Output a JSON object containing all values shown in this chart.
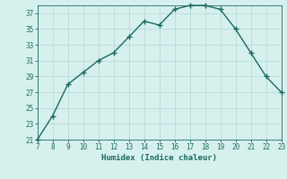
{
  "x": [
    7,
    8,
    9,
    10,
    11,
    12,
    13,
    14,
    15,
    16,
    17,
    18,
    19,
    20,
    21,
    22,
    23
  ],
  "y": [
    21,
    24,
    28,
    29.5,
    31,
    32,
    34,
    36,
    35.5,
    37.5,
    38,
    38,
    37.5,
    35,
    32,
    29,
    27
  ],
  "xlabel": "Humidex (Indice chaleur)",
  "line_color": "#1a6b5a",
  "marker": "+",
  "marker_size": 4,
  "bg_color": "#d6f0ee",
  "grid_color": "#b8dbd8",
  "tick_color": "#1a6b5a",
  "label_color": "#1a6b5a",
  "xlim": [
    7,
    23
  ],
  "ylim": [
    21,
    38
  ],
  "yticks": [
    21,
    23,
    25,
    27,
    29,
    31,
    33,
    35,
    37
  ],
  "xticks": [
    7,
    8,
    9,
    10,
    11,
    12,
    13,
    14,
    15,
    16,
    17,
    18,
    19,
    20,
    21,
    22,
    23
  ],
  "tick_fontsize": 5.5,
  "xlabel_fontsize": 6.5
}
